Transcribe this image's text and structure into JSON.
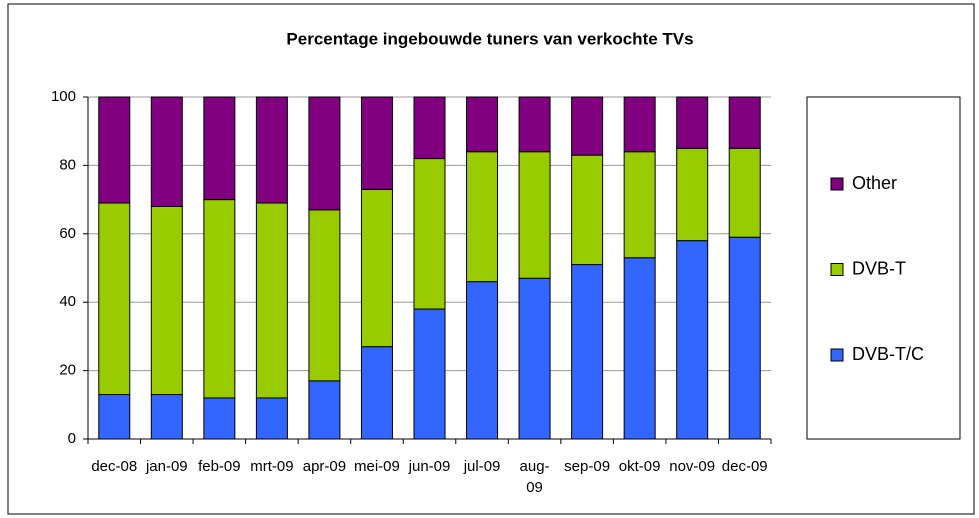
{
  "chart_data": {
    "type": "stacked_bar",
    "title": "Percentage ingebouwde tuners van verkochte TVs",
    "categories": [
      "dec-08",
      "jan-09",
      "feb-09",
      "mrt-09",
      "apr-09",
      "mei-09",
      "jun-09",
      "jul-09",
      "aug-09",
      "sep-09",
      "okt-09",
      "nov-09",
      "dec-09"
    ],
    "series": [
      {
        "name": "DVB-T/C",
        "color": "#3366ff",
        "values": [
          13,
          13,
          12,
          12,
          17,
          27,
          38,
          46,
          47,
          51,
          53,
          58,
          59
        ]
      },
      {
        "name": "DVB-T",
        "color": "#99cc00",
        "values": [
          56,
          55,
          58,
          57,
          50,
          46,
          44,
          38,
          37,
          32,
          31,
          27,
          26
        ]
      },
      {
        "name": "Other",
        "color": "#800080",
        "values": [
          31,
          32,
          30,
          31,
          33,
          27,
          18,
          16,
          16,
          17,
          16,
          15,
          15
        ]
      }
    ],
    "ylim": [
      0,
      100
    ],
    "yticks": [
      0,
      20,
      40,
      60,
      80,
      100
    ],
    "grid": true,
    "legend": "right"
  }
}
